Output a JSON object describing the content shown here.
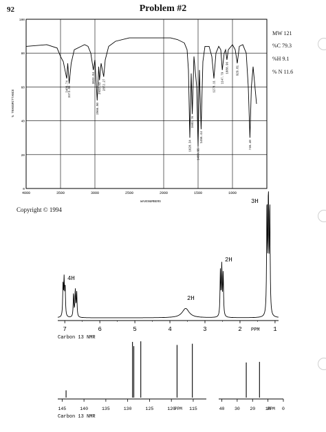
{
  "page_number": "92",
  "title": "Problem #2",
  "formula_info": {
    "mw": "MW 121",
    "c": "%C 79.3",
    "h": "%H 9.1",
    "n": "% N 11.6"
  },
  "copyright": "Copyright © 1994",
  "ir": {
    "ylabel": "% TRANSMITTANCE",
    "xlabel": "WAVENUMBERS",
    "x_ticks": [
      "4000",
      "3500",
      "3000",
      "2500",
      "2000",
      "1500",
      "1000"
    ],
    "y_ticks": [
      "100",
      "80",
      "60",
      "40",
      "20",
      "0"
    ],
    "peak_labels": [
      "3409.74",
      "3373.93",
      "3022.84",
      "2966.90",
      "2932.53",
      "2872.27",
      "1620.34",
      "1583.76",
      "1499.95",
      "1456.44",
      "1270.11",
      "1147.79",
      "1080.96",
      "929.81",
      "746.40"
    ]
  },
  "h_nmr": {
    "x_ticks": [
      "7",
      "6",
      "5",
      "4",
      "3",
      "2",
      "1"
    ],
    "ppm_label": "PPM",
    "integrals": [
      "4H",
      "2H",
      "2H",
      "3H"
    ]
  },
  "c_nmr": {
    "label_top": "Carbon 13 NMR",
    "label_bottom": "Carbon 13 NMR",
    "main_ticks": [
      "145",
      "140",
      "135",
      "130",
      "125",
      "120",
      "115"
    ],
    "ppm_main": "PPM",
    "inset_ticks": [
      "40",
      "30",
      "20",
      "10",
      "0"
    ],
    "ppm_inset": "PPM"
  },
  "chart_data": [
    {
      "type": "line",
      "title": "",
      "xlabel": "WAVENUMBERS",
      "ylabel": "% TRANSMITTANCE",
      "xlim": [
        4000,
        500
      ],
      "ylim": [
        0,
        100
      ],
      "grid": true,
      "series": [
        {
          "x": [
            4000,
            3700,
            3550,
            3500,
            3460,
            3409.74,
            3395,
            3373.93,
            3345,
            3300,
            3200,
            3150,
            3100,
            3060,
            3022.84,
            3000,
            2966.9,
            2945,
            2932.53,
            2910,
            2872.27,
            2850,
            2800,
            2700,
            2500,
            2300,
            2100,
            1900,
            1800,
            1700,
            1660,
            1640,
            1620.34,
            1600,
            1583.76,
            1560,
            1520,
            1499.95,
            1480,
            1456.44,
            1430,
            1400,
            1340,
            1300,
            1270.11,
            1240,
            1200,
            1170,
            1147.79,
            1120,
            1100,
            1080.96,
            1060,
            1000,
            960,
            929.81,
            900,
            850,
            800,
            770,
            746.4,
            725,
            700,
            650
          ],
          "y": [
            84,
            85,
            83,
            78,
            75,
            65,
            74,
            62,
            74,
            82,
            84,
            85,
            84,
            80,
            70,
            76,
            52,
            72,
            64,
            74,
            66,
            76,
            84,
            87,
            89,
            89,
            89,
            89,
            88,
            86,
            82,
            70,
            30,
            68,
            44,
            78,
            60,
            25,
            70,
            35,
            75,
            84,
            84,
            78,
            65,
            80,
            84,
            82,
            70,
            80,
            82,
            76,
            82,
            85,
            82,
            74,
            84,
            85,
            80,
            60,
            30,
            60,
            72,
            50
          ]
        }
      ]
    },
    {
      "type": "line",
      "title": "",
      "xlabel": "PPM",
      "ylabel": "",
      "xlim": [
        7.2,
        0.9
      ],
      "annotations": [
        "4H",
        "2H",
        "2H",
        "3H"
      ],
      "peaks": [
        {
          "ppm": 7.05,
          "height": 0.26
        },
        {
          "ppm": 7.02,
          "height": 0.3
        },
        {
          "ppm": 6.99,
          "height": 0.24
        },
        {
          "ppm": 6.75,
          "height": 0.2
        },
        {
          "ppm": 6.7,
          "height": 0.23
        },
        {
          "ppm": 6.66,
          "height": 0.21
        },
        {
          "ppm": 3.55,
          "height": 0.08
        },
        {
          "ppm": 2.56,
          "height": 0.38
        },
        {
          "ppm": 2.52,
          "height": 0.42
        },
        {
          "ppm": 2.48,
          "height": 0.36
        },
        {
          "ppm": 1.23,
          "height": 0.95
        },
        {
          "ppm": 1.19,
          "height": 1.0
        },
        {
          "ppm": 1.15,
          "height": 0.92
        }
      ]
    },
    {
      "type": "line",
      "title": "",
      "xlabel": "PPM",
      "ylabel": "",
      "xlim": [
        146,
        112
      ],
      "peaks": [
        {
          "ppm": 144.1,
          "height": 0.12
        },
        {
          "ppm": 128.9,
          "height": 0.92
        },
        {
          "ppm": 128.6,
          "height": 0.85
        },
        {
          "ppm": 127.0,
          "height": 0.93
        },
        {
          "ppm": 118.7,
          "height": 0.87
        },
        {
          "ppm": 115.2,
          "height": 0.89
        }
      ]
    },
    {
      "type": "line",
      "title": "",
      "xlabel": "PPM",
      "ylabel": "",
      "xlim": [
        42,
        0
      ],
      "peaks": [
        {
          "ppm": 24.1,
          "height": 0.58
        },
        {
          "ppm": 15.5,
          "height": 0.59
        }
      ]
    }
  ]
}
